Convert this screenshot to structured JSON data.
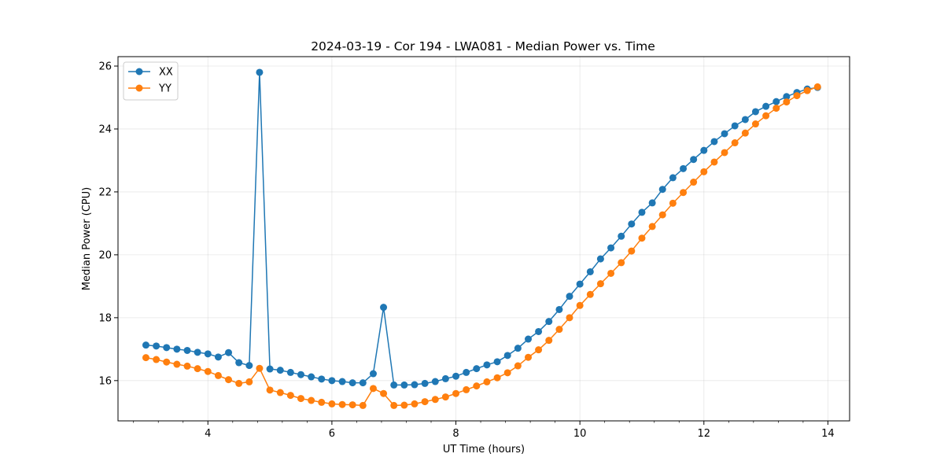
{
  "chart_data": {
    "type": "line",
    "title": "2024-03-19 - Cor 194 - LWA081 - Median Power vs. Time",
    "xlabel": "UT Time (hours)",
    "ylabel": "Median Power (CPU)",
    "xlim": [
      2.55,
      14.35
    ],
    "ylim": [
      14.72,
      26.3
    ],
    "xticks": [
      4,
      6,
      8,
      10,
      12,
      14
    ],
    "yticks": [
      16,
      18,
      20,
      22,
      24,
      26
    ],
    "grid": true,
    "legend_position": "top-left",
    "series": [
      {
        "name": "XX",
        "color": "#1f77b4",
        "x": [
          3.0,
          3.167,
          3.333,
          3.5,
          3.667,
          3.833,
          4.0,
          4.167,
          4.333,
          4.5,
          4.667,
          4.833,
          5.0,
          5.167,
          5.333,
          5.5,
          5.667,
          5.833,
          6.0,
          6.167,
          6.333,
          6.5,
          6.667,
          6.833,
          7.0,
          7.167,
          7.333,
          7.5,
          7.667,
          7.833,
          8.0,
          8.167,
          8.333,
          8.5,
          8.667,
          8.833,
          9.0,
          9.167,
          9.333,
          9.5,
          9.667,
          9.833,
          10.0,
          10.167,
          10.333,
          10.5,
          10.667,
          10.833,
          11.0,
          11.167,
          11.333,
          11.5,
          11.667,
          11.833,
          12.0,
          12.167,
          12.333,
          12.5,
          12.667,
          12.833,
          13.0,
          13.167,
          13.333,
          13.5,
          13.667,
          13.833
        ],
        "y": [
          17.13,
          17.1,
          17.05,
          17.0,
          16.96,
          16.9,
          16.85,
          16.75,
          16.89,
          16.57,
          16.48,
          25.8,
          16.37,
          16.33,
          16.26,
          16.19,
          16.12,
          16.05,
          16.0,
          15.97,
          15.93,
          15.93,
          16.22,
          18.33,
          15.86,
          15.86,
          15.87,
          15.91,
          15.97,
          16.06,
          16.14,
          16.26,
          16.38,
          16.5,
          16.6,
          16.8,
          17.03,
          17.32,
          17.56,
          17.88,
          18.26,
          18.68,
          19.07,
          19.46,
          19.87,
          20.22,
          20.59,
          20.98,
          21.35,
          21.65,
          22.08,
          22.45,
          22.74,
          23.03,
          23.32,
          23.6,
          23.85,
          24.1,
          24.3,
          24.55,
          24.72,
          24.87,
          25.03,
          25.16,
          25.27,
          25.32
        ]
      },
      {
        "name": "YY",
        "color": "#ff7f0e",
        "x": [
          3.0,
          3.167,
          3.333,
          3.5,
          3.667,
          3.833,
          4.0,
          4.167,
          4.333,
          4.5,
          4.667,
          4.833,
          5.0,
          5.167,
          5.333,
          5.5,
          5.667,
          5.833,
          6.0,
          6.167,
          6.333,
          6.5,
          6.667,
          6.833,
          7.0,
          7.167,
          7.333,
          7.5,
          7.667,
          7.833,
          8.0,
          8.167,
          8.333,
          8.5,
          8.667,
          8.833,
          9.0,
          9.167,
          9.333,
          9.5,
          9.667,
          9.833,
          10.0,
          10.167,
          10.333,
          10.5,
          10.667,
          10.833,
          11.0,
          11.167,
          11.333,
          11.5,
          11.667,
          11.833,
          12.0,
          12.167,
          12.333,
          12.5,
          12.667,
          12.833,
          13.0,
          13.167,
          13.333,
          13.5,
          13.667,
          13.833
        ],
        "y": [
          16.73,
          16.67,
          16.59,
          16.52,
          16.46,
          16.38,
          16.29,
          16.16,
          16.03,
          15.91,
          15.96,
          16.39,
          15.7,
          15.62,
          15.53,
          15.43,
          15.37,
          15.31,
          15.26,
          15.24,
          15.23,
          15.21,
          15.75,
          15.59,
          15.21,
          15.22,
          15.26,
          15.33,
          15.4,
          15.48,
          15.59,
          15.71,
          15.83,
          15.96,
          16.09,
          16.25,
          16.47,
          16.74,
          16.98,
          17.28,
          17.63,
          18.0,
          18.39,
          18.74,
          19.08,
          19.41,
          19.75,
          20.12,
          20.53,
          20.9,
          21.27,
          21.64,
          21.98,
          22.31,
          22.64,
          22.95,
          23.25,
          23.56,
          23.87,
          24.16,
          24.42,
          24.66,
          24.86,
          25.06,
          25.22,
          25.34
        ]
      }
    ]
  }
}
